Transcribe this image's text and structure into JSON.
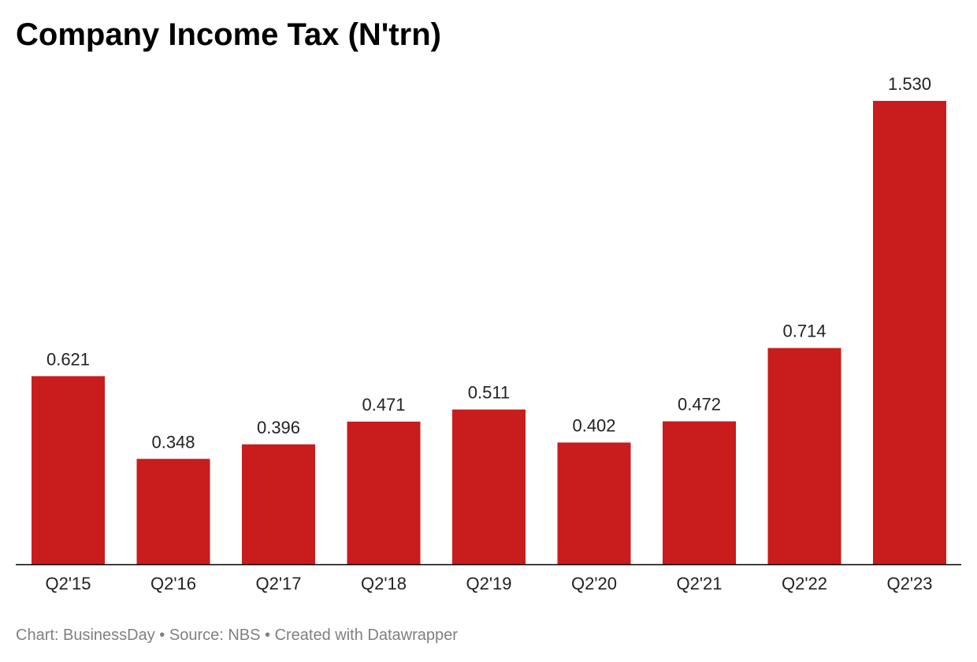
{
  "chart_data": {
    "type": "bar",
    "title": "Company Income Tax (N'trn)",
    "categories": [
      "Q2'15",
      "Q2'16",
      "Q2'17",
      "Q2'18",
      "Q2'19",
      "Q2'20",
      "Q2'21",
      "Q2'22",
      "Q2'23"
    ],
    "values": [
      0.621,
      0.348,
      0.396,
      0.471,
      0.511,
      0.402,
      0.472,
      0.714,
      1.53
    ],
    "value_labels": [
      "0.621",
      "0.348",
      "0.396",
      "0.471",
      "0.511",
      "0.402",
      "0.472",
      "0.714",
      "1.530"
    ],
    "xlabel": "",
    "ylabel": "",
    "ylim": [
      0,
      1.53
    ],
    "grid": false,
    "legend": "none",
    "bar_color": "#c91c1c",
    "axis_color": "#000000"
  },
  "footer": {
    "text": "Chart: BusinessDay • Source: NBS • Created with Datawrapper"
  }
}
